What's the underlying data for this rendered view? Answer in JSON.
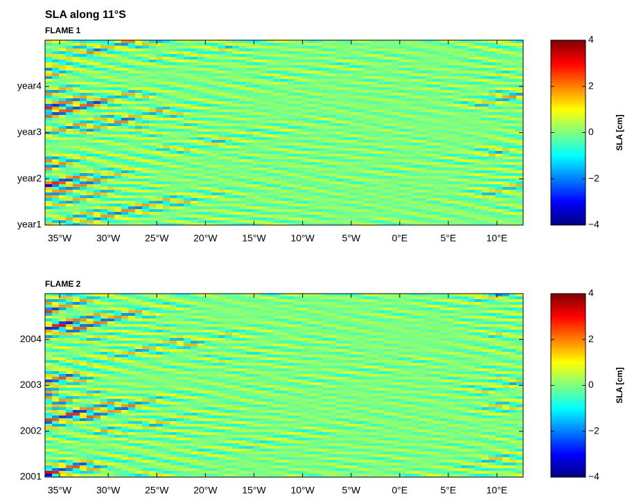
{
  "chart_data": [
    {
      "type": "heatmap",
      "title": "SLA along 11°S",
      "subtitle": "FLAME 1",
      "colormap": "jet",
      "xlim": [
        -36.5,
        12.7
      ],
      "xticks": [
        {
          "value": -35,
          "label": "35°W"
        },
        {
          "value": -30,
          "label": "30°W"
        },
        {
          "value": -25,
          "label": "25°W"
        },
        {
          "value": -20,
          "label": "20°W"
        },
        {
          "value": -15,
          "label": "15°W"
        },
        {
          "value": -10,
          "label": "10°W"
        },
        {
          "value": -5,
          "label": "5°W"
        },
        {
          "value": 0,
          "label": "0°E"
        },
        {
          "value": 5,
          "label": "5°E"
        },
        {
          "value": 10,
          "label": "10°E"
        }
      ],
      "ylim": [
        1,
        5
      ],
      "yticks": [
        {
          "value": 1,
          "label": "year1"
        },
        {
          "value": 2,
          "label": "year2"
        },
        {
          "value": 3,
          "label": "year3"
        },
        {
          "value": 4,
          "label": "year4"
        }
      ],
      "colorbar": {
        "label": "SLA [cm]",
        "lim": [
          -4,
          4
        ],
        "ticks": [
          {
            "value": -4,
            "label": "−4"
          },
          {
            "value": -2,
            "label": "−2"
          },
          0,
          2,
          4
        ]
      }
    },
    {
      "type": "heatmap",
      "subtitle": "FLAME 2",
      "colormap": "jet",
      "xlim": [
        -36.5,
        12.7
      ],
      "xticks": [
        {
          "value": -35,
          "label": "35°W"
        },
        {
          "value": -30,
          "label": "30°W"
        },
        {
          "value": -25,
          "label": "25°W"
        },
        {
          "value": -20,
          "label": "20°W"
        },
        {
          "value": -15,
          "label": "15°W"
        },
        {
          "value": -10,
          "label": "10°W"
        },
        {
          "value": -5,
          "label": "5°W"
        },
        {
          "value": 0,
          "label": "0°E"
        },
        {
          "value": 5,
          "label": "5°E"
        },
        {
          "value": 10,
          "label": "10°E"
        }
      ],
      "ylim": [
        2001,
        2005
      ],
      "yticks": [
        2001,
        2002,
        2003,
        2004
      ],
      "colorbar": {
        "label": "SLA [cm]",
        "lim": [
          -4,
          4
        ],
        "ticks": [
          {
            "value": -4,
            "label": "−4"
          },
          {
            "value": -2,
            "label": "−2"
          },
          0,
          2,
          4
        ]
      }
    }
  ]
}
